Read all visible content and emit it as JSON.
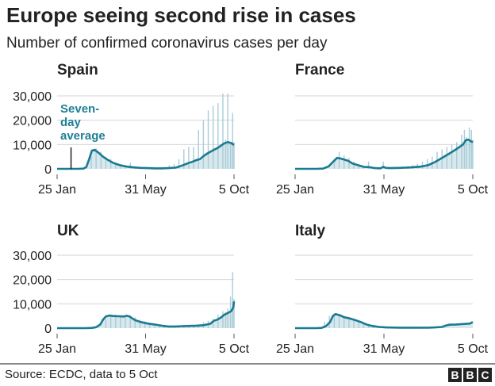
{
  "title": "Europe seeing second rise in cases",
  "subtitle": "Number of confirmed coronavirus cases per day",
  "footer": {
    "source": "Source: ECDC, data to 5 Oct",
    "logo": [
      "B",
      "B",
      "C"
    ]
  },
  "colors": {
    "line": "#1a7a91",
    "bars": "#a9cdd8",
    "grid": "#d6d6d6",
    "text": "#222222"
  },
  "chart_data": [
    {
      "type": "line",
      "title": "Spain",
      "xlabel": "",
      "ylabel": "",
      "ylim": [
        0,
        30000
      ],
      "yticks": [
        0,
        10000,
        20000,
        30000
      ],
      "ytick_labels": [
        "0",
        "10,000",
        "20,000",
        "30,000"
      ],
      "show_yticks": true,
      "xticks": [
        0,
        127,
        254
      ],
      "xtick_labels": [
        "25 Jan",
        "31 May",
        "5 Oct"
      ],
      "xlim": [
        0,
        254
      ],
      "annotation": {
        "text": [
          "Seven-",
          "day",
          "average"
        ],
        "x": 20
      },
      "series": [
        {
          "name": "Daily cases",
          "type": "bar",
          "x": [
            42,
            49,
            56,
            63,
            70,
            77,
            84,
            91,
            98,
            105,
            112,
            119,
            126,
            133,
            140,
            147,
            154,
            161,
            168,
            175,
            182,
            189,
            196,
            203,
            210,
            217,
            224,
            231,
            238,
            242,
            245,
            249,
            252,
            254
          ],
          "values": [
            600,
            5000,
            8500,
            7000,
            5000,
            4000,
            2500,
            1500,
            1000,
            2500,
            500,
            400,
            600,
            300,
            300,
            400,
            500,
            1500,
            2000,
            4000,
            8000,
            9000,
            9000,
            16000,
            20000,
            24000,
            26000,
            27000,
            31000,
            12000,
            31000,
            10000,
            23000,
            11000
          ]
        },
        {
          "name": "Seven-day average",
          "type": "line",
          "x": [
            0,
            20,
            30,
            38,
            42,
            46,
            50,
            54,
            60,
            66,
            72,
            80,
            90,
            100,
            110,
            120,
            130,
            140,
            150,
            160,
            170,
            175,
            180,
            185,
            190,
            195,
            200,
            205,
            210,
            215,
            220,
            225,
            230,
            235,
            240,
            245,
            250,
            254
          ],
          "values": [
            0,
            0,
            0,
            100,
            800,
            4000,
            7500,
            7800,
            6500,
            5000,
            3800,
            2500,
            1500,
            900,
            600,
            400,
            300,
            200,
            200,
            300,
            500,
            900,
            1400,
            2000,
            2500,
            3000,
            3600,
            4000,
            5200,
            6200,
            7000,
            7800,
            8500,
            9500,
            10500,
            11000,
            10600,
            9800
          ]
        }
      ]
    },
    {
      "type": "line",
      "title": "France",
      "ylim": [
        0,
        30000
      ],
      "yticks": [
        0,
        10000,
        20000,
        30000
      ],
      "show_yticks": false,
      "xticks": [
        0,
        127,
        254
      ],
      "xtick_labels": [
        "25 Jan",
        "31 May",
        "5 Oct"
      ],
      "xlim": [
        0,
        254
      ],
      "series": [
        {
          "name": "Daily cases",
          "type": "bar",
          "x": [
            56,
            63,
            70,
            77,
            84,
            91,
            98,
            105,
            112,
            119,
            126,
            133,
            140,
            147,
            154,
            161,
            168,
            175,
            182,
            189,
            196,
            203,
            210,
            217,
            224,
            231,
            238,
            242,
            245,
            249,
            252,
            254
          ],
          "values": [
            4000,
            7000,
            5500,
            4500,
            3000,
            1500,
            1000,
            3000,
            800,
            500,
            3000,
            400,
            500,
            600,
            800,
            1000,
            1500,
            2000,
            3000,
            4000,
            5000,
            7000,
            8000,
            9000,
            10000,
            11000,
            14000,
            16000,
            13000,
            17000,
            16000,
            12000
          ]
        },
        {
          "name": "Seven-day average",
          "type": "line",
          "x": [
            0,
            30,
            40,
            48,
            54,
            60,
            64,
            70,
            76,
            82,
            90,
            98,
            106,
            114,
            122,
            126,
            130,
            136,
            150,
            165,
            180,
            190,
            200,
            210,
            220,
            230,
            235,
            240,
            244,
            248,
            252,
            254
          ],
          "values": [
            0,
            0,
            100,
            1000,
            2800,
            4500,
            4300,
            3800,
            3300,
            2200,
            1500,
            800,
            700,
            300,
            200,
            800,
            400,
            300,
            400,
            600,
            900,
            1500,
            2800,
            4500,
            6200,
            8000,
            9000,
            10000,
            11800,
            12000,
            11200,
            11000
          ]
        }
      ]
    },
    {
      "type": "line",
      "title": "UK",
      "ylim": [
        0,
        30000
      ],
      "yticks": [
        0,
        10000,
        20000,
        30000
      ],
      "ytick_labels": [
        "0",
        "10,000",
        "20,000",
        "30,000"
      ],
      "show_yticks": true,
      "xticks": [
        0,
        127,
        254
      ],
      "xtick_labels": [
        "25 Jan",
        "31 May",
        "5 Oct"
      ],
      "xlim": [
        0,
        254
      ],
      "series": [
        {
          "name": "Daily cases",
          "type": "bar",
          "x": [
            70,
            77,
            84,
            91,
            98,
            105,
            112,
            119,
            126,
            133,
            140,
            147,
            154,
            161,
            168,
            175,
            182,
            189,
            196,
            203,
            210,
            217,
            224,
            231,
            238,
            242,
            245,
            249,
            252,
            254
          ],
          "values": [
            3500,
            5500,
            5500,
            5200,
            5000,
            5200,
            4500,
            3500,
            2800,
            2000,
            1600,
            1200,
            900,
            800,
            800,
            900,
            1000,
            1100,
            1200,
            1400,
            2500,
            3000,
            4000,
            5500,
            7000,
            6500,
            8000,
            13000,
            23000,
            12000
          ]
        },
        {
          "name": "Seven-day average",
          "type": "line",
          "x": [
            0,
            40,
            50,
            56,
            62,
            66,
            70,
            75,
            80,
            88,
            96,
            100,
            104,
            108,
            112,
            120,
            130,
            140,
            150,
            160,
            170,
            180,
            190,
            200,
            210,
            220,
            225,
            230,
            235,
            240,
            245,
            250,
            253,
            254
          ],
          "values": [
            0,
            0,
            100,
            400,
            1500,
            3500,
            4800,
            5200,
            5000,
            4900,
            4800,
            5100,
            4800,
            4000,
            3300,
            2500,
            1900,
            1500,
            1000,
            700,
            700,
            800,
            900,
            1000,
            1200,
            1800,
            3000,
            3500,
            4300,
            5500,
            6200,
            7000,
            8500,
            11000
          ]
        }
      ]
    },
    {
      "type": "line",
      "title": "Italy",
      "ylim": [
        0,
        30000
      ],
      "yticks": [
        0,
        10000,
        20000,
        30000
      ],
      "show_yticks": false,
      "xticks": [
        0,
        127,
        254
      ],
      "xtick_labels": [
        "25 Jan",
        "31 May",
        "5 Oct"
      ],
      "xlim": [
        0,
        254
      ],
      "series": [
        {
          "name": "Daily cases",
          "type": "bar",
          "x": [
            42,
            49,
            56,
            63,
            70,
            77,
            84,
            91,
            98,
            105,
            112,
            119
          ],
          "values": [
            2500,
            5000,
            6000,
            5500,
            4500,
            4000,
            3500,
            2800,
            2000,
            1500,
            800,
            500
          ]
        },
        {
          "name": "Seven-day average",
          "type": "line",
          "x": [
            0,
            30,
            38,
            44,
            50,
            54,
            58,
            64,
            70,
            78,
            86,
            94,
            102,
            110,
            120,
            130,
            150,
            170,
            190,
            200,
            210,
            215,
            220,
            230,
            240,
            250,
            254
          ],
          "values": [
            0,
            0,
            100,
            800,
            2500,
            5000,
            5800,
            5300,
            4500,
            4000,
            3300,
            2500,
            1500,
            900,
            500,
            300,
            200,
            200,
            200,
            300,
            500,
            1000,
            1400,
            1500,
            1700,
            1900,
            2500
          ]
        }
      ]
    }
  ]
}
